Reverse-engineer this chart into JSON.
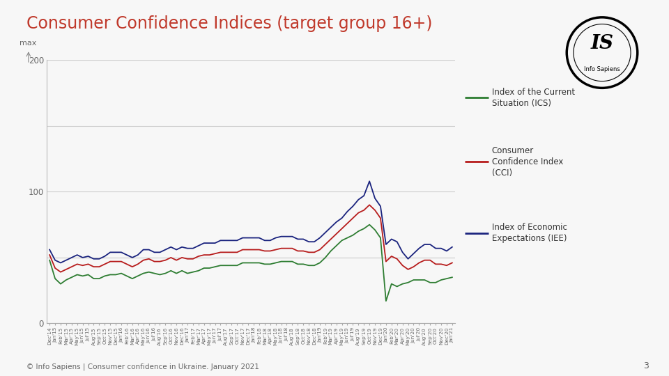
{
  "title": "Consumer Confidence Indices (target group 16+)",
  "title_color": "#c0392b",
  "title_fontsize": 17,
  "background_color": "#f7f7f7",
  "footer": "© Info Sapiens | Consumer confidence in Ukraine. January 2021",
  "page_number": "3",
  "grid_color": "#cccccc",
  "legend_entries": [
    {
      "label": "Index of the Current\nSituation (ICS)",
      "color": "#2e7d32"
    },
    {
      "label": "Consumer\nConfidence Index\n(CCI)",
      "color": "#b71c1c"
    },
    {
      "label": "Index of Economic\nExpectations (IEE)",
      "color": "#1a237e"
    }
  ],
  "x_labels": [
    "Dec'14",
    "Jan'15",
    "Feb'15",
    "Mar'15",
    "Apr'15",
    "May'15",
    "Jun'15",
    "Jul'15",
    "Aug'15",
    "Sep'15",
    "Oct'15",
    "Nov'15",
    "Dec'15",
    "Jan'16",
    "Feb'16",
    "Mar'16",
    "Apr'16",
    "May'16",
    "Jun'16",
    "Jul'16",
    "Aug'16",
    "Sep'16",
    "Oct'16",
    "Nov'16",
    "Dec'16",
    "Jan'17",
    "Feb'17",
    "Mar'17",
    "Apr'17",
    "May'17",
    "Jun'17",
    "Jul'17",
    "Aug'17",
    "Sep'17",
    "Oct'17",
    "Nov'17",
    "Dec'17",
    "Jan'18",
    "Feb'18",
    "Mar'18",
    "Apr'18",
    "May'18",
    "Jun'18",
    "Jul'18",
    "Aug'18",
    "Sep'18",
    "Oct'18",
    "Nov'18",
    "Dec'18",
    "Jan'19",
    "Feb'19",
    "Mar'19",
    "Apr'19",
    "May'19",
    "Jun'19",
    "Jul'19",
    "Aug'19",
    "Sep'19",
    "Oct'19",
    "Nov'19",
    "Dec'19",
    "Jan'20",
    "Feb'20",
    "Mar'20",
    "Apr'20",
    "May'20",
    "Jun'20",
    "Jul'20",
    "Aug'20",
    "Sep'20",
    "Oct'20",
    "Nov'20",
    "Dec'20",
    "Jan'21"
  ],
  "ICS": [
    48,
    34,
    30,
    33,
    35,
    37,
    36,
    37,
    34,
    34,
    36,
    37,
    37,
    38,
    36,
    34,
    36,
    38,
    39,
    38,
    37,
    38,
    40,
    38,
    40,
    38,
    39,
    40,
    42,
    42,
    43,
    44,
    44,
    44,
    44,
    46,
    46,
    46,
    46,
    45,
    45,
    46,
    47,
    47,
    47,
    45,
    45,
    44,
    44,
    46,
    50,
    55,
    59,
    63,
    65,
    67,
    70,
    72,
    75,
    71,
    65,
    17,
    30,
    28,
    30,
    31,
    33,
    33,
    33,
    31,
    31,
    33,
    34,
    35
  ],
  "CCI": [
    52,
    42,
    39,
    41,
    43,
    45,
    44,
    45,
    43,
    43,
    45,
    47,
    47,
    47,
    45,
    43,
    45,
    48,
    49,
    47,
    47,
    48,
    50,
    48,
    50,
    49,
    49,
    51,
    52,
    52,
    53,
    54,
    54,
    54,
    54,
    56,
    56,
    56,
    56,
    55,
    55,
    56,
    57,
    57,
    57,
    55,
    55,
    54,
    54,
    56,
    60,
    64,
    68,
    72,
    76,
    80,
    84,
    86,
    90,
    86,
    80,
    47,
    51,
    49,
    44,
    41,
    43,
    46,
    48,
    48,
    45,
    45,
    44,
    46
  ],
  "IEE": [
    56,
    48,
    46,
    48,
    50,
    52,
    50,
    51,
    49,
    49,
    51,
    54,
    54,
    54,
    52,
    50,
    52,
    56,
    56,
    54,
    54,
    56,
    58,
    56,
    58,
    57,
    57,
    59,
    61,
    61,
    61,
    63,
    63,
    63,
    63,
    65,
    65,
    65,
    65,
    63,
    63,
    65,
    66,
    66,
    66,
    64,
    64,
    62,
    62,
    65,
    69,
    73,
    77,
    80,
    85,
    89,
    94,
    97,
    108,
    95,
    89,
    60,
    64,
    62,
    54,
    49,
    53,
    57,
    60,
    60,
    57,
    57,
    55,
    58
  ]
}
